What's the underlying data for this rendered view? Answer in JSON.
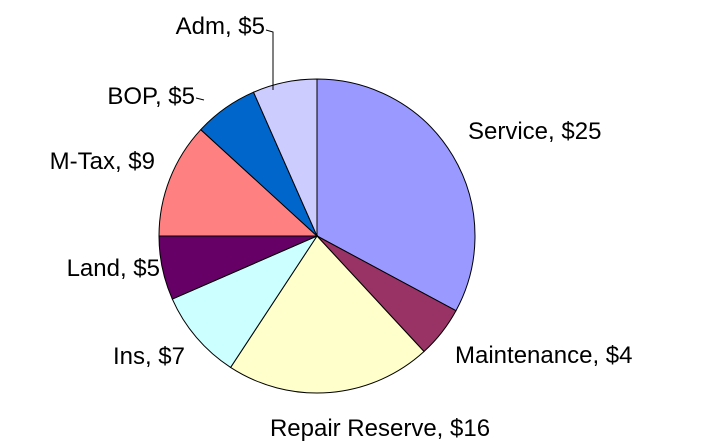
{
  "chart_data": {
    "type": "pie",
    "categories": [
      "Service",
      "Maintenance",
      "Repair Reserve",
      "Ins",
      "Land",
      "M-Tax",
      "BOP",
      "Adm"
    ],
    "values": [
      25,
      4,
      16,
      7,
      5,
      9,
      5,
      5
    ],
    "value_labels": [
      "$25",
      "$4",
      "$16",
      "$7",
      "$5",
      "$9",
      "$5",
      "$5"
    ],
    "label_separator": ", ",
    "colors": [
      "#9999ff",
      "#993366",
      "#ffffcc",
      "#ccffff",
      "#660066",
      "#ff8080",
      "#0066cc",
      "#ccccff"
    ]
  }
}
